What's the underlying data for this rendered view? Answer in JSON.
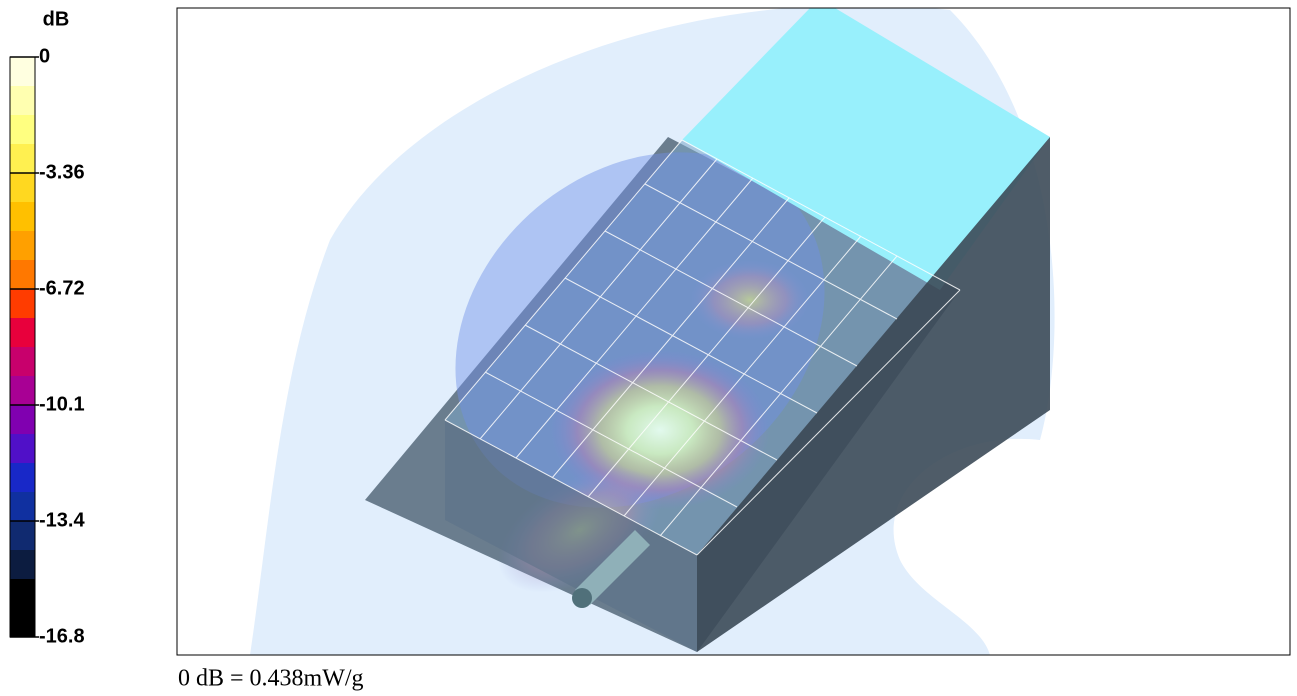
{
  "colorbar": {
    "title": "dB",
    "ticks": [
      0,
      -3.36,
      -6.72,
      -10.1,
      -13.4,
      -16.8
    ]
  },
  "caption": "0 dB = 0.438mW/g"
}
